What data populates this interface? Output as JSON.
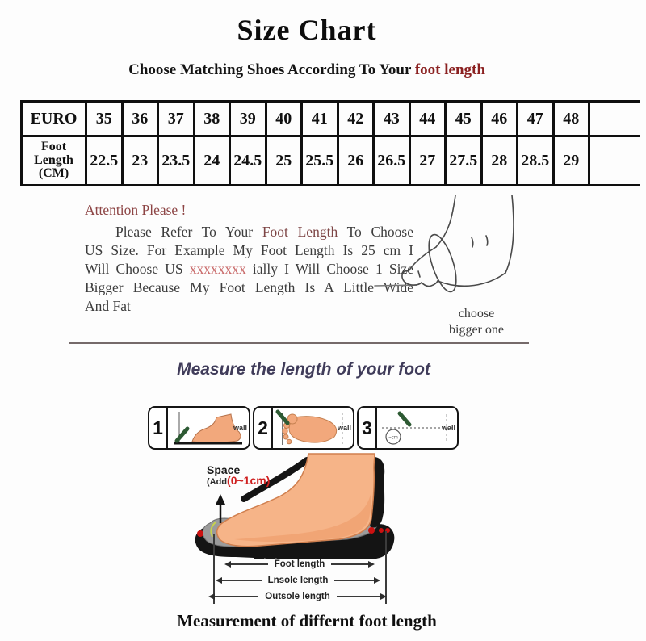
{
  "header": {
    "title": "Size Chart",
    "subtitle_prefix": "Choose Matching Shoes According To Your ",
    "subtitle_highlight": "foot length"
  },
  "size_table": {
    "euro_label": "EURO",
    "foot_label": "Foot Length (CM)",
    "euro_sizes": [
      "35",
      "36",
      "37",
      "38",
      "39",
      "40",
      "41",
      "42",
      "43",
      "44",
      "45",
      "46",
      "47",
      "48"
    ],
    "foot_lengths_cm": [
      "22.5",
      "23",
      "23.5",
      "24",
      "24.5",
      "25",
      "25.5",
      "26",
      "26.5",
      "27",
      "27.5",
      "28",
      "28.5",
      "29"
    ]
  },
  "attention": {
    "heading": "Attention Please !",
    "line1_pre": "Please Refer To Your ",
    "line1_highlight": "Foot Length",
    "line1_post": " To Choose",
    "line2": "US Size. For Example My Foot Length Is 25 cm I",
    "line3_pre": "Will Choose US ",
    "line3_red": "xxxxxxxx",
    "line3_post": " ially I Will Choose 1 Size",
    "line4": "Bigger Because My Foot Length Is A Little Wide",
    "line5": "And Fat",
    "note_line1": "choose",
    "note_line2": "bigger one"
  },
  "measure": {
    "heading": "Measure the length of your foot",
    "steps": [
      {
        "num": "1",
        "wall": "wall"
      },
      {
        "num": "2",
        "wall": "wall"
      },
      {
        "num": "3",
        "wall": "wall"
      }
    ]
  },
  "diagram": {
    "space_label": "Space",
    "space_add": "(Add",
    "space_value": "(0~1cm)",
    "dim_labels": [
      "Foot length",
      "Lnsole length",
      "Outsole length"
    ],
    "caption": "Measurement of differnt foot length"
  },
  "colors": {
    "subtitle_highlight": "#8b2121",
    "attention_heading": "#8d4545",
    "red_x": "#c96a6a",
    "measure_heading": "#403c5a",
    "space_value_red": "#cf2020",
    "skin": "#f6b488",
    "pencil_green": "#2d5a33"
  }
}
